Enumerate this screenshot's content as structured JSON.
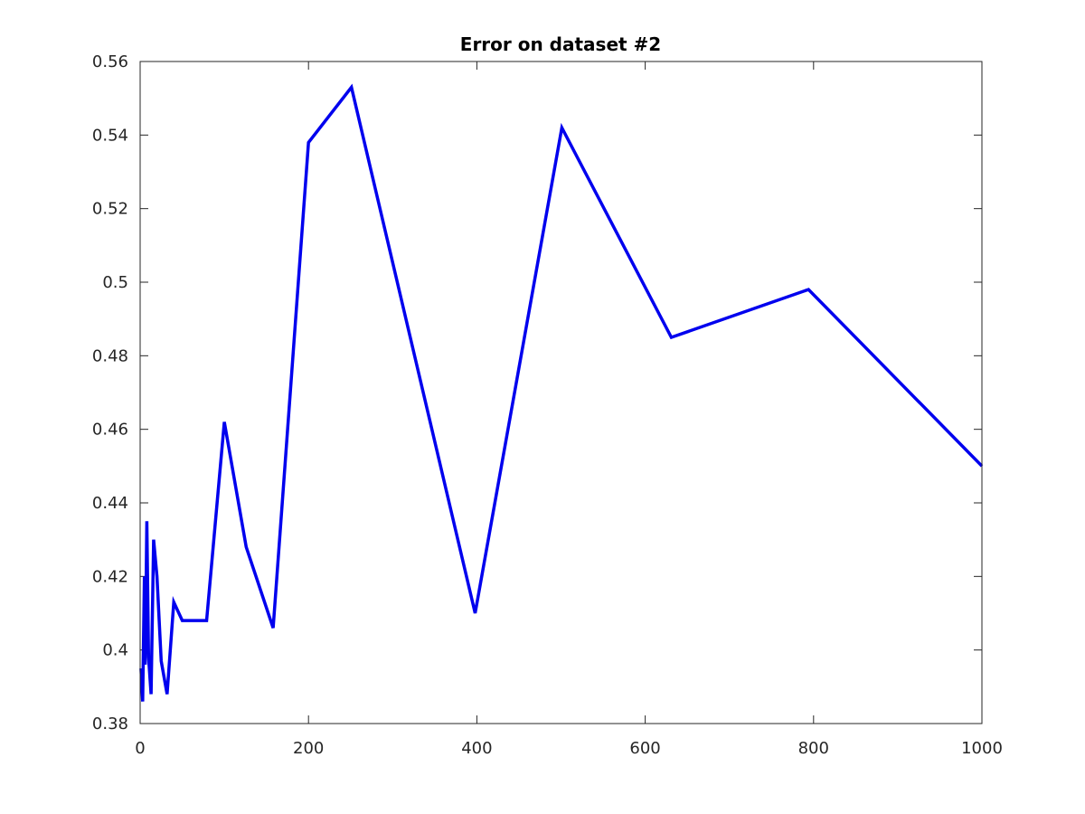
{
  "chart_data": {
    "type": "line",
    "title": "Error on dataset #2",
    "xlabel": "",
    "ylabel": "",
    "xlim": [
      0,
      1000
    ],
    "ylim": [
      0.38,
      0.56
    ],
    "xticks": [
      0,
      200,
      400,
      600,
      800,
      1000
    ],
    "xtick_labels": [
      "0",
      "200",
      "400",
      "600",
      "800",
      "1000"
    ],
    "yticks": [
      0.38,
      0.4,
      0.42,
      0.44,
      0.46,
      0.48,
      0.5,
      0.52,
      0.54,
      0.56
    ],
    "ytick_labels": [
      "0.38",
      "0.4",
      "0.42",
      "0.44",
      "0.46",
      "0.48",
      "0.5",
      "0.52",
      "0.54",
      "0.56"
    ],
    "grid": false,
    "line_color": "#0000ee",
    "series": [
      {
        "x": [
          1,
          3,
          5,
          6,
          8,
          10,
          13,
          16,
          20,
          25,
          32,
          40,
          50,
          63,
          79,
          100,
          126,
          158,
          200,
          251,
          398,
          501,
          631,
          794,
          1000
        ],
        "values": [
          0.395,
          0.386,
          0.42,
          0.396,
          0.435,
          0.398,
          0.388,
          0.43,
          0.42,
          0.397,
          0.388,
          0.413,
          0.408,
          0.408,
          0.408,
          0.462,
          0.428,
          0.406,
          0.538,
          0.553,
          0.41,
          0.542,
          0.485,
          0.498,
          0.45
        ]
      }
    ]
  }
}
